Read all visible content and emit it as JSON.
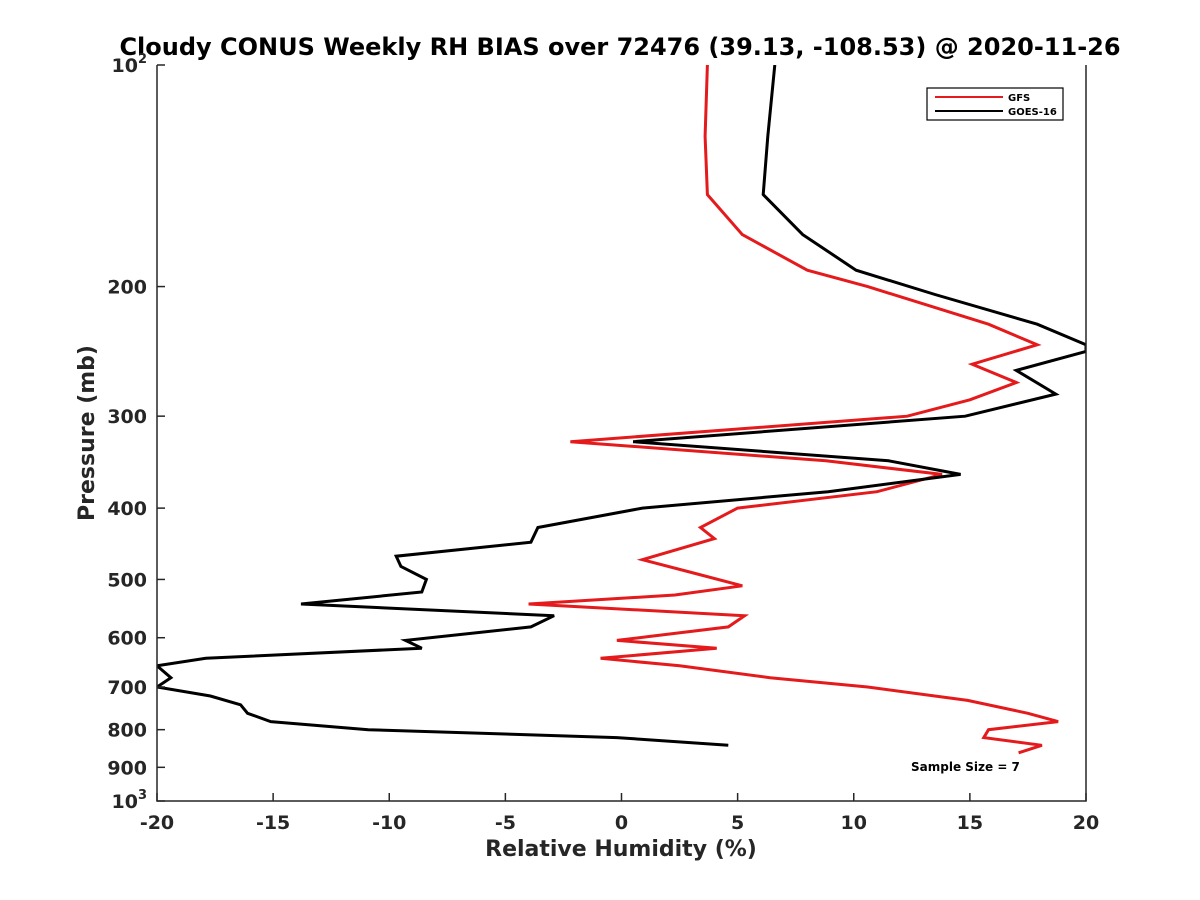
{
  "chart_data": {
    "type": "line",
    "title": "Cloudy CONUS Weekly RH BIAS over 72476 (39.13, -108.53) @ 2020-11-26",
    "xlabel": "Relative Humidity (%)",
    "ylabel": "Pressure (mb)",
    "xlim": [
      -20,
      20
    ],
    "ylim": [
      1000,
      100
    ],
    "yscale": "log",
    "y_reversed": true,
    "x_ticks": [
      "-20",
      "-15",
      "-10",
      "-5",
      "0",
      "5",
      "10",
      "15",
      "20"
    ],
    "y_ticks": [
      {
        "value": 100,
        "base": "10",
        "exp": "2"
      },
      {
        "value": 200,
        "label": "200"
      },
      {
        "value": 300,
        "label": "300"
      },
      {
        "value": 400,
        "label": "400"
      },
      {
        "value": 500,
        "label": "500"
      },
      {
        "value": 600,
        "label": "600"
      },
      {
        "value": 700,
        "label": "700"
      },
      {
        "value": 800,
        "label": "800"
      },
      {
        "value": 900,
        "label": "900"
      },
      {
        "value": 1000,
        "base": "10",
        "exp": "3"
      }
    ],
    "grid": false,
    "legend_position": "top-right",
    "annotation": "Sample Size = 7",
    "series": [
      {
        "name": "GFS",
        "color": "#e41a1c",
        "points": [
          [
            3.7,
            100
          ],
          [
            3.6,
            125
          ],
          [
            3.7,
            150
          ],
          [
            5.2,
            170
          ],
          [
            8,
            190
          ],
          [
            10.6,
            200
          ],
          [
            15.8,
            225
          ],
          [
            17.9,
            240
          ],
          [
            15.1,
            255
          ],
          [
            17,
            270
          ],
          [
            15,
            285
          ],
          [
            12.3,
            300
          ],
          [
            -2.2,
            325
          ],
          [
            8.8,
            345
          ],
          [
            13.8,
            360
          ],
          [
            11,
            380
          ],
          [
            5,
            400
          ],
          [
            3.4,
            425
          ],
          [
            4,
            440
          ],
          [
            0.9,
            470
          ],
          [
            3.1,
            490
          ],
          [
            5.2,
            510
          ],
          [
            2.3,
            525
          ],
          [
            -4,
            540
          ],
          [
            5.3,
            560
          ],
          [
            4.6,
            580
          ],
          [
            -0.2,
            605
          ],
          [
            4.1,
            620
          ],
          [
            -0.9,
            640
          ],
          [
            2.5,
            655
          ],
          [
            6.4,
            680
          ],
          [
            10.6,
            700
          ],
          [
            14.9,
            730
          ],
          [
            17.5,
            760
          ],
          [
            18.8,
            780
          ],
          [
            15.8,
            800
          ],
          [
            15.6,
            820
          ],
          [
            18.1,
            840
          ],
          [
            17.1,
            860
          ]
        ]
      },
      {
        "name": "GOES-16",
        "color": "#000000",
        "points": [
          [
            6.6,
            100
          ],
          [
            6.3,
            125
          ],
          [
            6.1,
            150
          ],
          [
            7.8,
            170
          ],
          [
            10.1,
            190
          ],
          [
            13.5,
            205
          ],
          [
            17.9,
            225
          ],
          [
            20,
            240
          ],
          [
            20,
            245
          ],
          [
            17,
            260
          ],
          [
            18.7,
            280
          ],
          [
            14.8,
            300
          ],
          [
            0.5,
            325
          ],
          [
            11.5,
            345
          ],
          [
            14.6,
            360
          ],
          [
            8.9,
            380
          ],
          [
            0.9,
            400
          ],
          [
            -3.6,
            425
          ],
          [
            -3.9,
            445
          ],
          [
            -9.7,
            465
          ],
          [
            -9.5,
            480
          ],
          [
            -8.4,
            500
          ],
          [
            -8.6,
            520
          ],
          [
            -13.8,
            540
          ],
          [
            -2.9,
            560
          ],
          [
            -3.9,
            580
          ],
          [
            -9.3,
            605
          ],
          [
            -8.6,
            620
          ],
          [
            -17.9,
            640
          ],
          [
            -20,
            655
          ],
          [
            -19.4,
            680
          ],
          [
            -20,
            700
          ],
          [
            -17.7,
            720
          ],
          [
            -16.4,
            740
          ],
          [
            -16.1,
            760
          ],
          [
            -15.1,
            780
          ],
          [
            -10.9,
            800
          ],
          [
            -0.2,
            820
          ],
          [
            4.6,
            840
          ]
        ]
      }
    ]
  }
}
